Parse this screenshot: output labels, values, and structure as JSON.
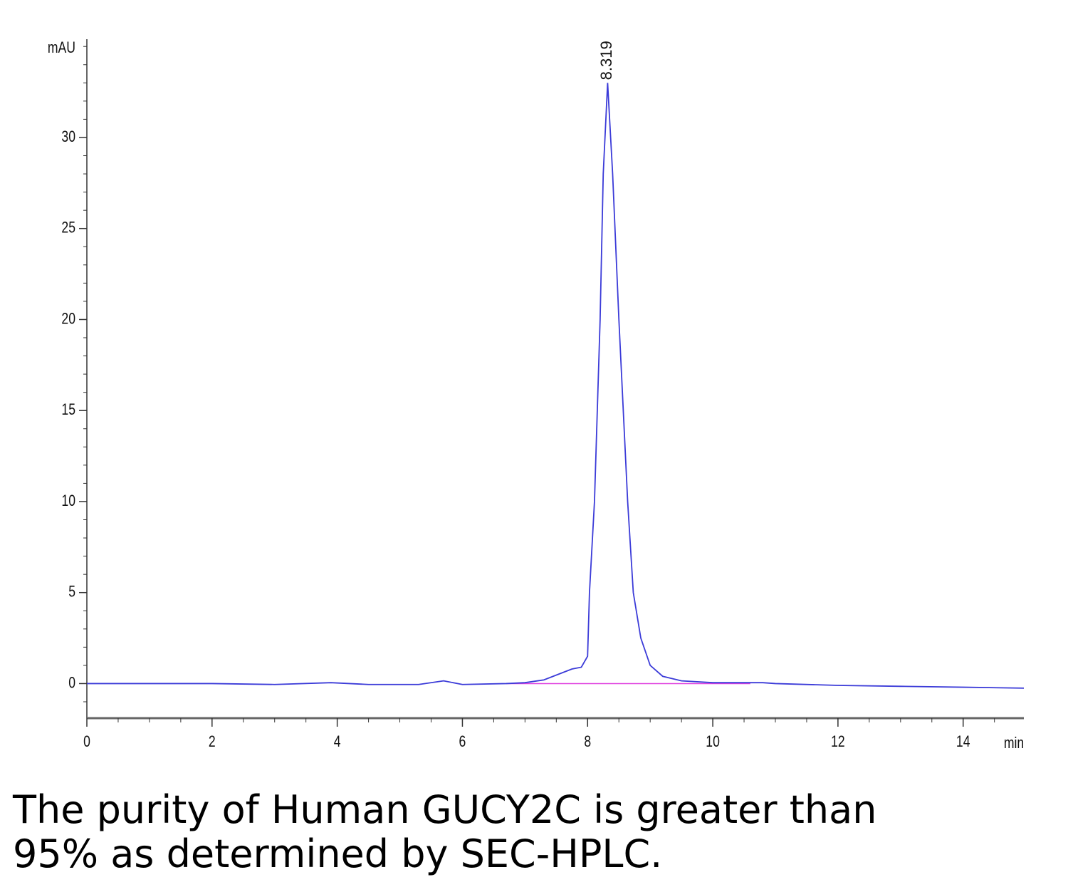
{
  "chart_data": {
    "type": "line",
    "xlabel": "min",
    "ylabel": "mAU",
    "x": [
      0,
      1,
      2,
      3,
      3.9,
      4.5,
      5.3,
      5.7,
      6.0,
      6.7,
      7.0,
      7.3,
      7.6,
      7.75,
      7.9,
      8.0,
      8.03,
      8.11,
      8.2,
      8.25,
      8.32,
      8.4,
      8.5,
      8.64,
      8.73,
      8.85,
      9.0,
      9.2,
      9.5,
      10.0,
      10.8,
      11.0,
      12.0,
      13.0,
      14.0,
      14.97
    ],
    "values": [
      0,
      0,
      0,
      -0.05,
      0.05,
      -0.05,
      -0.05,
      0.15,
      -0.05,
      0,
      0.05,
      0.2,
      0.6,
      0.8,
      0.9,
      1.5,
      5,
      10,
      20,
      28,
      33,
      28,
      20,
      10,
      5,
      2.5,
      1.0,
      0.4,
      0.15,
      0.05,
      0.05,
      0,
      -0.1,
      -0.15,
      -0.2,
      -0.25
    ],
    "color": "#3b3bd8",
    "baseline": {
      "x": [
        6.7,
        10.6
      ],
      "values": [
        0,
        0
      ],
      "color": "#e040e0"
    },
    "annotations": [
      {
        "x": 8.319,
        "y": 33,
        "label": "8.319"
      }
    ],
    "xlim": [
      0,
      14.97
    ],
    "ylim": [
      -1.9,
      35.4
    ],
    "xticks": [
      0,
      2,
      4,
      6,
      8,
      10,
      12,
      14
    ],
    "yticks": [
      0,
      5,
      10,
      15,
      20,
      25,
      30
    ],
    "xminor": 0.5,
    "yminor": 1,
    "caption": [
      "The purity of Human GUCY2C is greater than",
      "95% as determined by SEC-HPLC."
    ]
  }
}
